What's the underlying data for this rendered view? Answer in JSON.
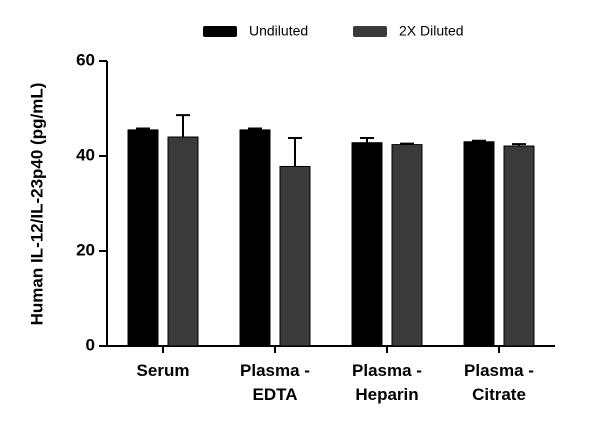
{
  "chart_data": {
    "type": "bar",
    "y_label": "Human IL-12/IL-23p40 (pg/mL)",
    "categories": [
      "Serum",
      "Plasma -\nEDTA",
      "Plasma -\nHeparin",
      "Plasma -\nCitrate"
    ],
    "series": [
      {
        "name": "Undiluted",
        "color": "#000000",
        "values": [
          45.5,
          45.5,
          42.8,
          43.0
        ],
        "errors": [
          0.3,
          0.3,
          1.0,
          0.2
        ]
      },
      {
        "name": "2X Diluted",
        "color": "#3a3a3a",
        "values": [
          44.0,
          37.8,
          42.4,
          42.1
        ],
        "errors": [
          4.6,
          6.0,
          0.2,
          0.4
        ]
      }
    ],
    "ylim": [
      0,
      60
    ],
    "yticks": [
      0,
      20,
      40,
      60
    ],
    "grid": false,
    "legend": "top"
  }
}
